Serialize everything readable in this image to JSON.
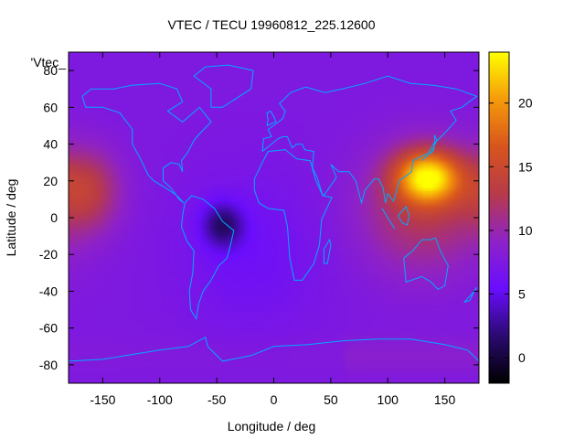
{
  "chart_data": {
    "type": "heatmap",
    "title": "VTEC / TECU 19960812_225.12600",
    "xlabel": "Longitude / deg",
    "ylabel": "Latitude / deg",
    "legend_text": "'Vtec_",
    "xlim": [
      -180,
      180
    ],
    "ylim": [
      -90,
      90
    ],
    "x_ticks": [
      -150,
      -100,
      -50,
      0,
      50,
      100,
      150
    ],
    "y_ticks": [
      80,
      60,
      40,
      20,
      0,
      -20,
      -40,
      -60,
      -80
    ],
    "colorbar": {
      "range": [
        -2,
        24
      ],
      "ticks": [
        0,
        5,
        10,
        15,
        20
      ],
      "palette": [
        "#000000",
        "#2a0a70",
        "#6a0dff",
        "#8e22c8",
        "#b73a4a",
        "#d8541d",
        "#f59a0a",
        "#ffff00"
      ]
    },
    "grid": false,
    "features": [
      {
        "description": "enhanced VTEC region over East Asia / western Pacific",
        "lon": 135,
        "lat": 22,
        "peak_value": 22
      },
      {
        "description": "enhanced VTEC region over the eastern Pacific",
        "lon": -165,
        "lat": 15,
        "peak_value": 13
      },
      {
        "description": "low VTEC region over South America",
        "lon": -45,
        "lat": -5,
        "peak_value": 2
      }
    ],
    "coastline_color": "#00aaff"
  }
}
